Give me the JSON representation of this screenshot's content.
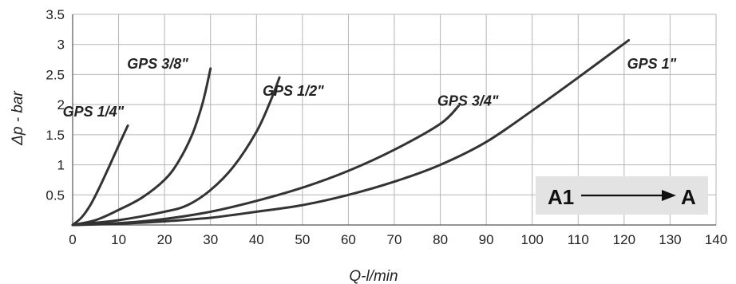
{
  "chart_data": {
    "type": "line",
    "xlabel": "Q-l/min",
    "ylabel": "Δp - bar",
    "xlim": [
      0,
      140
    ],
    "ylim": [
      0,
      3.5
    ],
    "x_ticks": [
      0,
      10,
      20,
      30,
      40,
      50,
      60,
      70,
      80,
      90,
      100,
      110,
      120,
      130,
      140
    ],
    "x_tick_labels": [
      "0",
      "10",
      "20",
      "30",
      "40",
      "50",
      "60",
      "70",
      "80",
      "90",
      "100",
      "110",
      "120",
      "130",
      "140"
    ],
    "y_ticks": [
      0.5,
      1,
      1.5,
      2,
      2.5,
      3,
      3.5
    ],
    "y_tick_labels": [
      "0.5",
      "1",
      "1.5",
      "2",
      "2.5",
      "3",
      "3.5"
    ],
    "grid": true,
    "line_color": "#333333",
    "grid_color": "#b5b5b5",
    "series": [
      {
        "name": "GPS 1/4\"",
        "x": [
          0,
          2,
          4,
          6,
          8,
          10,
          12
        ],
        "y": [
          0,
          0.13,
          0.35,
          0.65,
          0.98,
          1.32,
          1.65
        ]
      },
      {
        "name": "GPS 3/8\"",
        "x": [
          0,
          5,
          10,
          15,
          20,
          23,
          26,
          28,
          29,
          30
        ],
        "y": [
          0,
          0.08,
          0.25,
          0.45,
          0.75,
          1.05,
          1.5,
          1.95,
          2.25,
          2.6
        ]
      },
      {
        "name": "GPS 1/2\"",
        "x": [
          0,
          10,
          20,
          25,
          30,
          35,
          40,
          43,
          45
        ],
        "y": [
          0,
          0.08,
          0.22,
          0.33,
          0.58,
          0.97,
          1.55,
          2.05,
          2.45
        ]
      },
      {
        "name": "GPS 3/4\"",
        "x": [
          0,
          10,
          20,
          30,
          40,
          50,
          60,
          70,
          80,
          84
        ],
        "y": [
          0,
          0.03,
          0.1,
          0.22,
          0.4,
          0.62,
          0.9,
          1.25,
          1.68,
          1.98
        ]
      },
      {
        "name": "GPS 1\"",
        "x": [
          0,
          10,
          20,
          30,
          40,
          50,
          60,
          70,
          80,
          90,
          100,
          110,
          121
        ],
        "y": [
          0,
          0.02,
          0.06,
          0.12,
          0.22,
          0.33,
          0.5,
          0.72,
          1.0,
          1.38,
          1.9,
          2.45,
          3.07
        ]
      }
    ],
    "series_labels": [
      {
        "text": "GPS 1/4\"",
        "x": 4.5,
        "y": 1.8
      },
      {
        "text": "GPS 3/8\"",
        "x": 18.5,
        "y": 2.6
      },
      {
        "text": "GPS 1/2\"",
        "x": 48,
        "y": 2.15
      },
      {
        "text": "GPS 3/4\"",
        "x": 86,
        "y": 1.98
      },
      {
        "text": "GPS 1\"",
        "x": 126,
        "y": 2.6
      }
    ]
  },
  "flow_box": {
    "from": "A1",
    "to": "A",
    "background": "#e3e3e3"
  }
}
